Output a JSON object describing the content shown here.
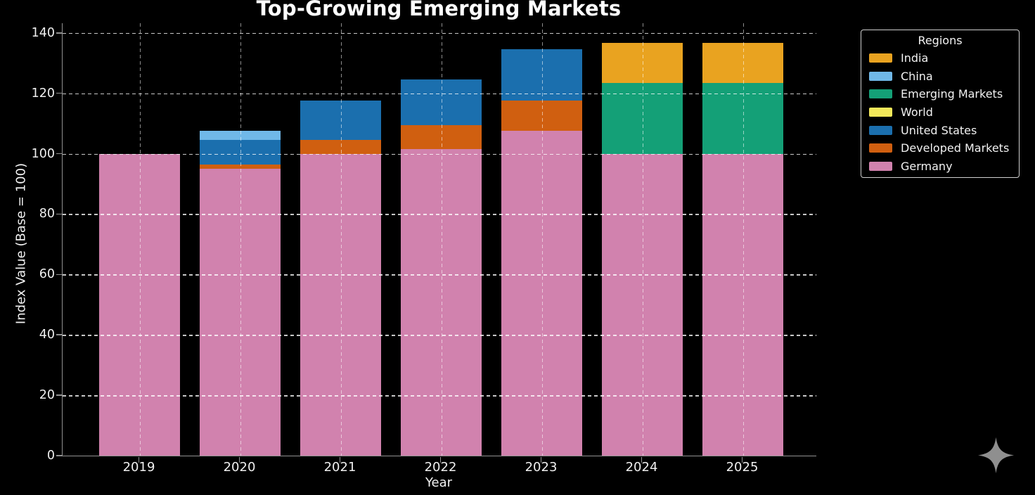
{
  "chart_data": {
    "type": "bar",
    "stacked": true,
    "title": "Top-Growing Emerging Markets",
    "xlabel": "Year",
    "ylabel": "Index Value (Base = 100)",
    "categories": [
      "2019",
      "2020",
      "2021",
      "2022",
      "2023",
      "2024",
      "2025"
    ],
    "yticks": [
      0,
      20,
      40,
      60,
      80,
      100,
      120,
      140
    ],
    "ylim": [
      0,
      143.2
    ],
    "grid": true,
    "grid_style": "dashed",
    "background_color": "#000000",
    "text_color": "#f2f2f2",
    "series": [
      {
        "name": "Germany",
        "color": "#d182ae",
        "values": [
          100,
          95,
          100,
          101.5,
          107.5,
          100,
          100
        ]
      },
      {
        "name": "Developed Markets",
        "color": "#d05f10",
        "values": [
          0,
          1.5,
          4.5,
          8,
          10,
          0,
          0
        ]
      },
      {
        "name": "United States",
        "color": "#1b6fae",
        "values": [
          0,
          8,
          13,
          15,
          17,
          0,
          0
        ]
      },
      {
        "name": "World",
        "color": "#f2e85a",
        "values": [
          0,
          0,
          0,
          0,
          0,
          0,
          0
        ]
      },
      {
        "name": "Emerging Markets",
        "color": "#14a077",
        "values": [
          0,
          0,
          0,
          0,
          0,
          23.5,
          23.5
        ]
      },
      {
        "name": "China",
        "color": "#70b8e8",
        "values": [
          0,
          3,
          0,
          0,
          0,
          0,
          0
        ]
      },
      {
        "name": "India",
        "color": "#e9a320",
        "values": [
          0,
          0,
          0,
          0,
          0,
          13.3,
          13.3
        ]
      }
    ],
    "totals": [
      100,
      107.5,
      117.5,
      124.5,
      134.5,
      136.8,
      136.8
    ],
    "legend": {
      "title": "Regions",
      "position": "upper right",
      "entries": [
        "India",
        "China",
        "Emerging Markets",
        "World",
        "United States",
        "Developed Markets",
        "Germany"
      ]
    }
  },
  "watermark": {
    "icon": "sparkle-icon",
    "color": "#8f8f8f"
  }
}
